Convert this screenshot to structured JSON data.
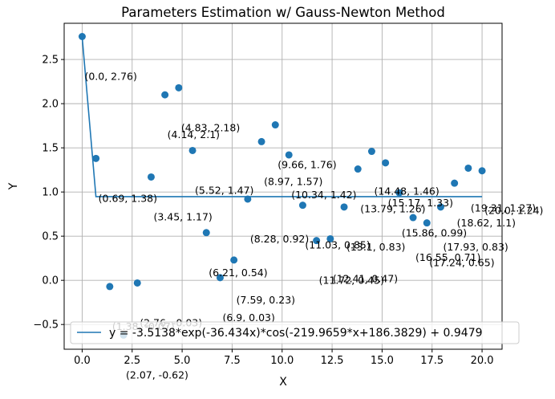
{
  "chart_data": {
    "type": "scatter",
    "title": "Parameters Estimation w/ Gauss-Newton Method",
    "xlabel": "X",
    "ylabel": "Y",
    "xlim": [
      -0.9,
      21.0
    ],
    "ylim": [
      -0.78,
      2.91
    ],
    "xticks": [
      0.0,
      2.5,
      5.0,
      7.5,
      10.0,
      12.5,
      15.0,
      17.5,
      20.0
    ],
    "xtick_labels": [
      "0.0",
      "2.5",
      "5.0",
      "7.5",
      "10.0",
      "12.5",
      "15.0",
      "17.5",
      "20.0"
    ],
    "yticks": [
      -0.5,
      0.0,
      0.5,
      1.0,
      1.5,
      2.0,
      2.5
    ],
    "ytick_labels": [
      "−0.5",
      "0.0",
      "0.5",
      "1.0",
      "1.5",
      "2.0",
      "2.5"
    ],
    "grid": true,
    "legend_position": "lower left",
    "point_color": "#1f77b4",
    "line_color": "#1f77b4",
    "series": [
      {
        "kind": "scatter",
        "points": [
          {
            "x": 0.0,
            "y": 2.76,
            "label": "(0.0, 2.76)"
          },
          {
            "x": 0.69,
            "y": 1.38,
            "label": "(0.69, 1.38)"
          },
          {
            "x": 1.38,
            "y": -0.07,
            "label": "(1.38, -0.07)"
          },
          {
            "x": 2.07,
            "y": -0.62,
            "label": "(2.07, -0.62)"
          },
          {
            "x": 2.76,
            "y": -0.03,
            "label": "(2.76, -0.03)"
          },
          {
            "x": 3.45,
            "y": 1.17,
            "label": "(3.45, 1.17)"
          },
          {
            "x": 4.14,
            "y": 2.1,
            "label": "(4.14, 2.1)"
          },
          {
            "x": 4.83,
            "y": 2.18,
            "label": "(4.83, 2.18)"
          },
          {
            "x": 5.52,
            "y": 1.47,
            "label": "(5.52, 1.47)"
          },
          {
            "x": 6.21,
            "y": 0.54,
            "label": "(6.21, 0.54)"
          },
          {
            "x": 6.9,
            "y": 0.03,
            "label": "(6.9, 0.03)"
          },
          {
            "x": 7.59,
            "y": 0.23,
            "label": "(7.59, 0.23)"
          },
          {
            "x": 8.28,
            "y": 0.92,
            "label": "(8.28, 0.92)"
          },
          {
            "x": 8.97,
            "y": 1.57,
            "label": "(8.97, 1.57)"
          },
          {
            "x": 9.66,
            "y": 1.76,
            "label": "(9.66, 1.76)"
          },
          {
            "x": 10.34,
            "y": 1.42,
            "label": "(10.34, 1.42)"
          },
          {
            "x": 11.03,
            "y": 0.85,
            "label": "(11.03, 0.85)"
          },
          {
            "x": 11.72,
            "y": 0.45,
            "label": "(11.72, 0.45)"
          },
          {
            "x": 12.41,
            "y": 0.47,
            "label": "(12.41, 0.47)"
          },
          {
            "x": 13.1,
            "y": 0.83,
            "label": "(13.1, 0.83)"
          },
          {
            "x": 13.79,
            "y": 1.26,
            "label": "(13.79, 1.26)"
          },
          {
            "x": 14.48,
            "y": 1.46,
            "label": "(14.48, 1.46)"
          },
          {
            "x": 15.17,
            "y": 1.33,
            "label": "(15.17, 1.33)"
          },
          {
            "x": 15.86,
            "y": 0.99,
            "label": "(15.86, 0.99)"
          },
          {
            "x": 16.55,
            "y": 0.71,
            "label": "(16.55, 0.71)"
          },
          {
            "x": 17.24,
            "y": 0.65,
            "label": "(17.24, 0.65)"
          },
          {
            "x": 17.93,
            "y": 0.83,
            "label": "(17.93, 0.83)"
          },
          {
            "x": 18.62,
            "y": 1.1,
            "label": "(18.62, 1.1)"
          },
          {
            "x": 19.31,
            "y": 1.27,
            "label": "(19.31, 1.27)"
          },
          {
            "x": 20.0,
            "y": 1.24,
            "label": "(20.0, 1.24)"
          }
        ]
      },
      {
        "kind": "line",
        "name": "y = -3.5138*exp(-36.434x)*cos(-219.9659*x+186.3829) + 0.9479",
        "x": [
          0.0,
          0.69,
          1.38,
          2.07,
          2.76,
          3.45,
          4.14,
          4.83,
          5.52,
          6.21,
          6.9,
          7.59,
          8.28,
          8.97,
          9.66,
          10.34,
          11.03,
          11.72,
          12.41,
          13.1,
          13.79,
          14.48,
          15.17,
          15.86,
          16.55,
          17.24,
          17.93,
          18.62,
          19.31,
          20.0
        ],
        "y": [
          2.76,
          0.9479,
          0.9479,
          0.9479,
          0.9479,
          0.9479,
          0.9479,
          0.9479,
          0.9479,
          0.9479,
          0.9479,
          0.9479,
          0.9479,
          0.9479,
          0.9479,
          0.9479,
          0.9479,
          0.9479,
          0.9479,
          0.9479,
          0.9479,
          0.9479,
          0.9479,
          0.9479,
          0.9479,
          0.9479,
          0.9479,
          0.9479,
          0.9479,
          0.9479
        ]
      }
    ]
  }
}
